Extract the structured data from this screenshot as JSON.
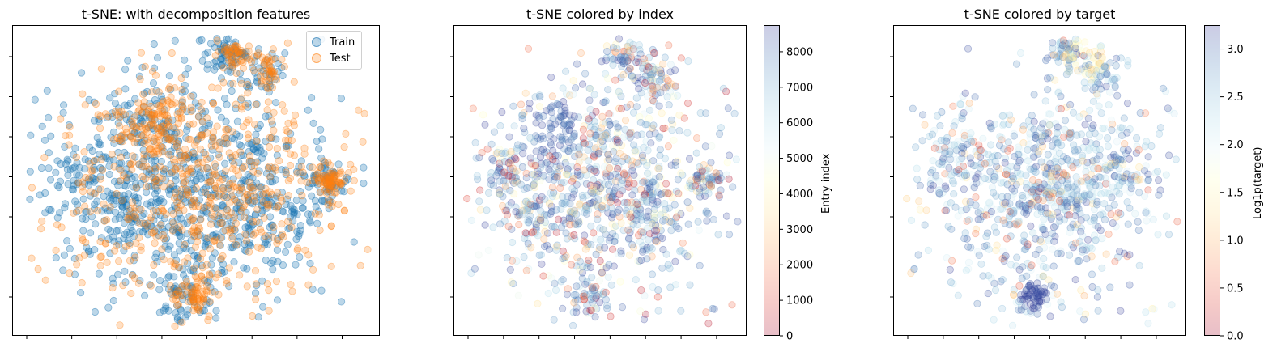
{
  "chart_data": [
    {
      "type": "scatter",
      "title": "t-SNE: with decomposition features",
      "xlabel": "",
      "ylabel": "",
      "tick_labels_visible": false,
      "grid": false,
      "legend": {
        "placement": "top-right",
        "entries": [
          "Train",
          "Test"
        ]
      },
      "series": [
        {
          "name": "Train",
          "color": "#1f77b4",
          "alpha": 0.3
        },
        {
          "name": "Test",
          "color": "#ff7f0e",
          "alpha": 0.25
        }
      ]
    },
    {
      "type": "scatter",
      "title": "t-SNE colored by index",
      "xlabel": "",
      "ylabel": "",
      "tick_labels_visible": false,
      "grid": false,
      "colormap": "RdYlBu",
      "colorbar": {
        "label": "Entry index",
        "range": [
          0,
          8750
        ],
        "ticks": [
          "0",
          "1000",
          "2000",
          "3000",
          "4000",
          "5000",
          "6000",
          "7000",
          "8000"
        ]
      }
    },
    {
      "type": "scatter",
      "title": "t-SNE colored by target",
      "xlabel": "",
      "ylabel": "",
      "tick_labels_visible": false,
      "grid": false,
      "colormap": "RdYlBu",
      "colorbar": {
        "label": "Log1p(target)",
        "range": [
          0,
          3.25
        ],
        "ticks": [
          "0.0",
          "0.5",
          "1.0",
          "1.5",
          "2.0",
          "2.5",
          "3.0"
        ]
      }
    }
  ]
}
